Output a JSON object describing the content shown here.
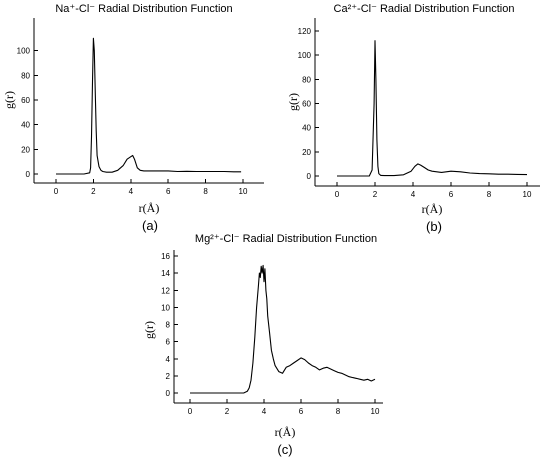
{
  "chart_data": [
    {
      "type": "line",
      "panel_label": "(a)",
      "title": "Na⁺-Cl⁻ Radial Distribution Function",
      "xlabel": "r(Å)",
      "ylabel": "g(r)",
      "xlim": [
        0,
        10
      ],
      "ylim": [
        0,
        120
      ],
      "xticks": [
        0,
        2,
        4,
        6,
        8,
        10
      ],
      "yticks": [
        0,
        20,
        40,
        60,
        80,
        100
      ],
      "grid": false,
      "series": [
        {
          "x": [
            0,
            1.5,
            1.8,
            1.85,
            1.9,
            1.95,
            2.0,
            2.05,
            2.1,
            2.15,
            2.2,
            2.3,
            2.4,
            2.5,
            2.7,
            3.0,
            3.3,
            3.6,
            3.8,
            4.0,
            4.1,
            4.2,
            4.35,
            4.5,
            4.7,
            5.0,
            5.3,
            5.6,
            6.0,
            6.5,
            7.0,
            7.5,
            8.0,
            8.5,
            9.0,
            9.5,
            9.9
          ],
          "y": [
            0,
            0,
            1,
            5,
            30,
            75,
            110,
            100,
            65,
            35,
            15,
            6,
            3,
            2,
            1.5,
            1.5,
            3,
            7,
            12,
            14,
            15,
            12,
            5,
            3,
            2.5,
            2.5,
            2.5,
            2.5,
            2.5,
            2,
            2.2,
            2,
            2,
            2,
            2,
            1.8,
            1.8
          ]
        }
      ]
    },
    {
      "type": "line",
      "panel_label": "(b)",
      "title": "Ca²⁺-Cl⁻ Radial Distribution Function",
      "xlabel": "r(Å)",
      "ylabel": "g(r)",
      "xlim": [
        0,
        10
      ],
      "ylim": [
        0,
        120
      ],
      "xticks": [
        0,
        2,
        4,
        6,
        8,
        10
      ],
      "yticks": [
        0,
        20,
        40,
        60,
        80,
        100,
        120
      ],
      "grid": false,
      "series": [
        {
          "x": [
            0,
            1.7,
            1.85,
            1.95,
            2.0,
            2.05,
            2.1,
            2.15,
            2.2,
            2.3,
            2.5,
            3.0,
            3.5,
            3.9,
            4.1,
            4.25,
            4.4,
            4.6,
            4.8,
            5.0,
            5.5,
            6.0,
            6.5,
            7.0,
            7.5,
            8.0,
            8.5,
            9.0,
            9.5,
            10.0
          ],
          "y": [
            0,
            0,
            5,
            60,
            112,
            80,
            30,
            8,
            2,
            0.5,
            0.3,
            0.3,
            1,
            4,
            8,
            10,
            9,
            7,
            5,
            4,
            3,
            4,
            3.5,
            2.5,
            2,
            1.8,
            1.5,
            1.5,
            1.3,
            1.2
          ]
        }
      ]
    },
    {
      "type": "line",
      "panel_label": "(c)",
      "title": "Mg²⁺-Cl⁻ Radial Distribution Function",
      "xlabel": "r(Å)",
      "ylabel": "g(r)",
      "xlim": [
        0,
        10
      ],
      "ylim": [
        0,
        16
      ],
      "xticks": [
        0,
        2,
        4,
        6,
        8,
        10
      ],
      "yticks": [
        0,
        2,
        4,
        6,
        8,
        10,
        12,
        14,
        16
      ],
      "grid": false,
      "series": [
        {
          "x": [
            0,
            2.9,
            3.1,
            3.2,
            3.3,
            3.4,
            3.5,
            3.6,
            3.7,
            3.75,
            3.8,
            3.85,
            3.9,
            3.95,
            4.0,
            4.05,
            4.1,
            4.15,
            4.2,
            4.3,
            4.4,
            4.5,
            4.6,
            4.8,
            5.0,
            5.2,
            5.4,
            5.6,
            5.8,
            6.0,
            6.2,
            6.4,
            6.6,
            6.8,
            7.0,
            7.2,
            7.4,
            7.6,
            7.8,
            8.0,
            8.2,
            8.4,
            8.6,
            8.8,
            9.0,
            9.2,
            9.4,
            9.6,
            9.8,
            10.0
          ],
          "y": [
            0,
            0,
            0.2,
            0.6,
            1.5,
            3.5,
            6.5,
            10,
            12.5,
            14,
            13.5,
            14.8,
            14,
            14.9,
            13,
            14.5,
            12,
            11,
            9,
            7,
            5,
            4,
            3.2,
            2.5,
            2.3,
            3,
            3.2,
            3.5,
            3.8,
            4.1,
            3.9,
            3.5,
            3.2,
            3.0,
            2.7,
            2.9,
            3.0,
            2.8,
            2.6,
            2.4,
            2.3,
            2.1,
            1.9,
            1.8,
            1.7,
            1.6,
            1.5,
            1.6,
            1.4,
            1.6
          ]
        }
      ]
    }
  ]
}
